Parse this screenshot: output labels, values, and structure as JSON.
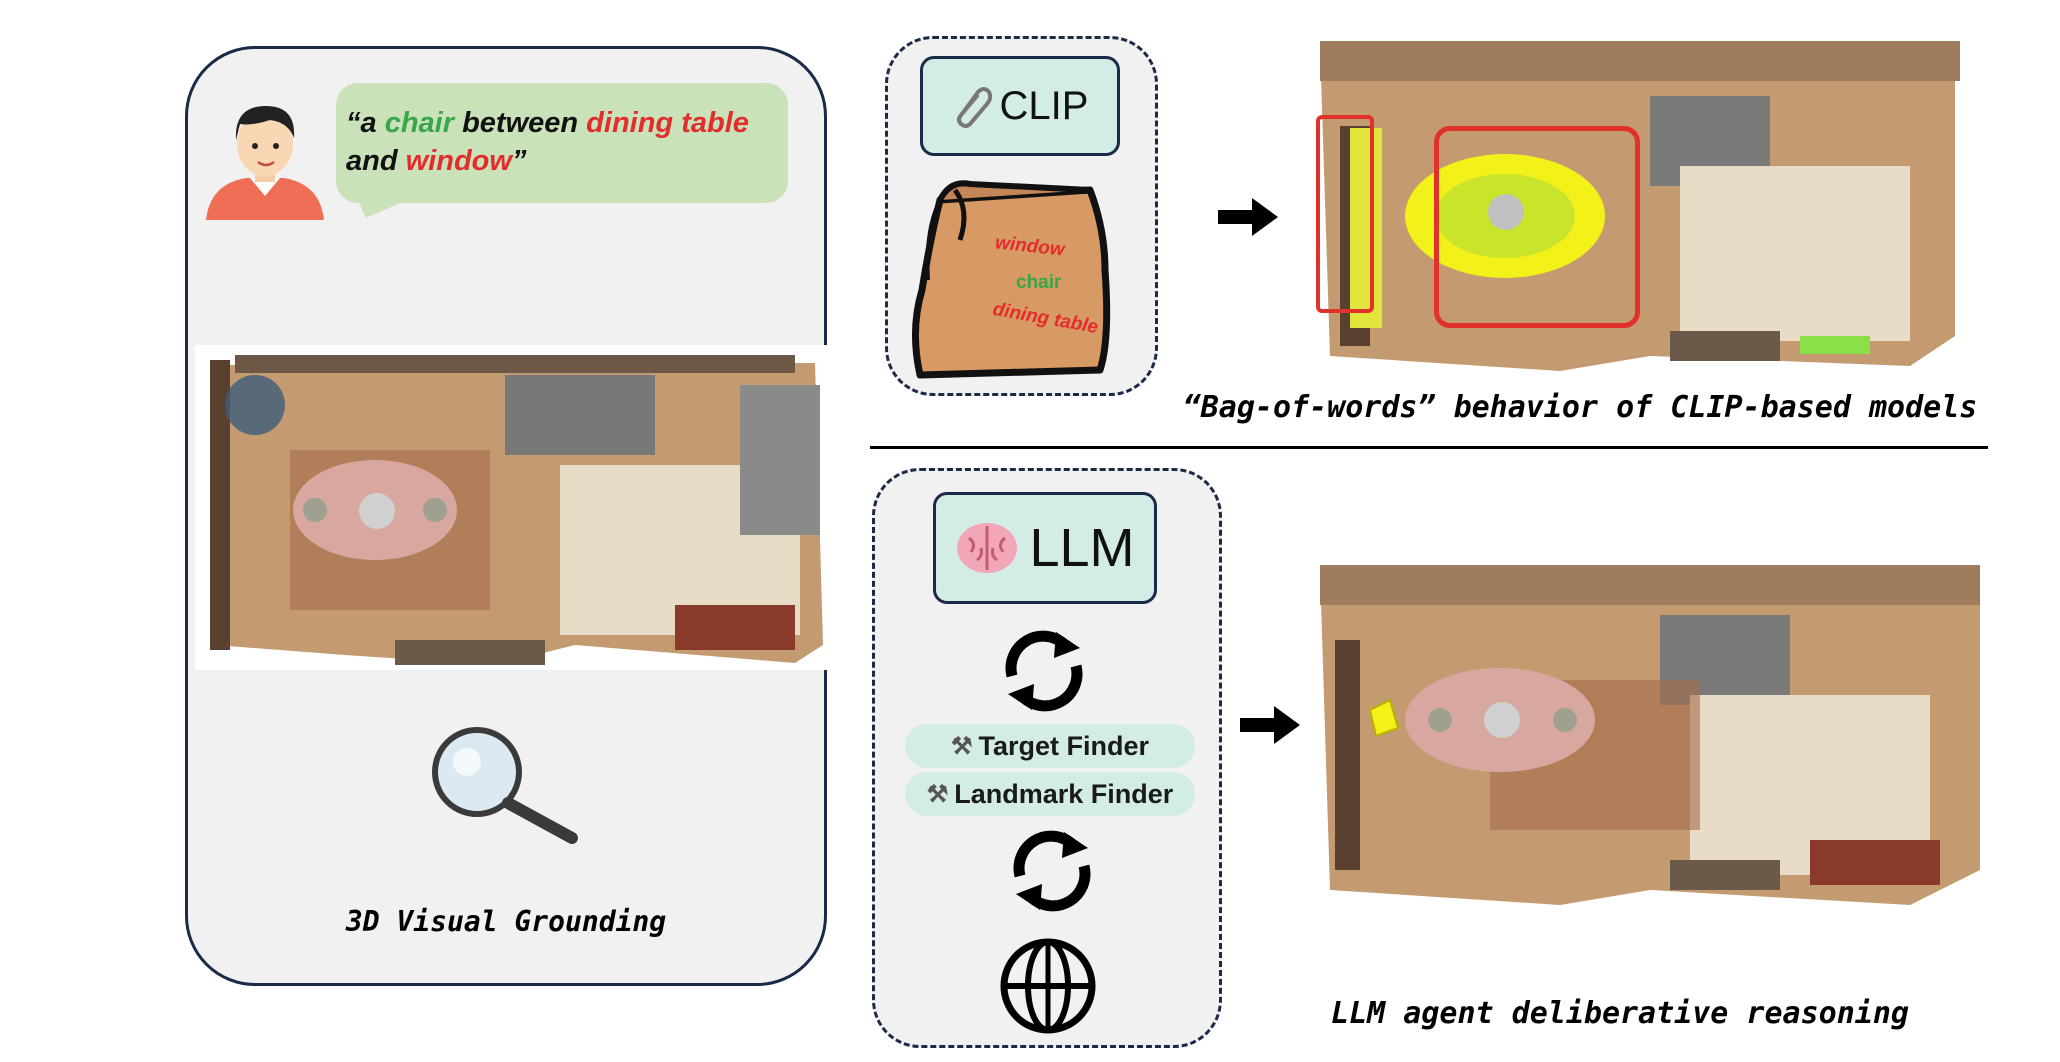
{
  "query": {
    "open_quote": "“a ",
    "chair": "chair",
    "between": " between ",
    "dining_table": "dining table",
    "and": "and ",
    "window": "window",
    "close_quote": "”"
  },
  "left": {
    "caption": "3D Visual Grounding"
  },
  "clip": {
    "label": "CLIP",
    "bag_words": [
      "window",
      "chair",
      "dining table"
    ],
    "caption": "“Bag-of-words” behavior of CLIP-based models"
  },
  "llm": {
    "label": "LLM",
    "tools": [
      "Target Finder",
      "Landmark Finder"
    ],
    "caption": "LLM agent deliberative reasoning"
  },
  "colors": {
    "target": "#3aa64a",
    "landmark": "#e32c2c",
    "panel_border": "#1b2a47",
    "pill": "#d4ece6",
    "highlight_box": "#e0312b",
    "highlight_fill": "#f2f11a"
  },
  "icons": [
    "person-avatar-icon",
    "magnifier-icon",
    "paperclip-icon",
    "paper-bag-icon",
    "arrow-right-icon",
    "brain-icon",
    "cycle-arrows-icon",
    "tools-icon",
    "globe-icon"
  ]
}
